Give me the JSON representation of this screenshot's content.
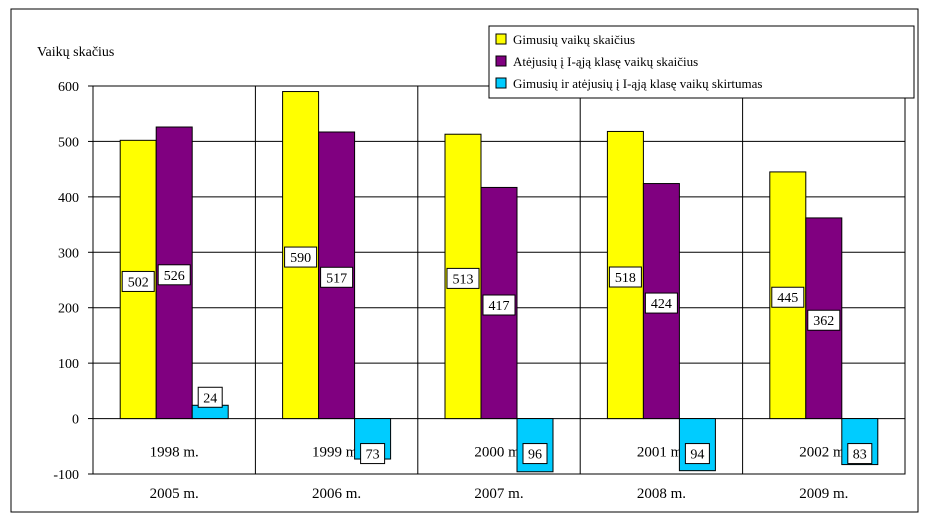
{
  "chart_data": {
    "type": "bar",
    "ylabel": "Vaikų skačius",
    "ylim": [
      -100,
      600
    ],
    "yticks": [
      -100,
      0,
      100,
      200,
      300,
      400,
      500,
      600
    ],
    "grid": true,
    "legend_position": "top-right",
    "categories_birth": [
      "1998 m.",
      "1999 m.",
      "2000 m.",
      "2001 m.",
      "2002 m."
    ],
    "categories": [
      "2005 m.",
      "2006 m.",
      "2007 m.",
      "2008 m.",
      "2009 m."
    ],
    "series": [
      {
        "name": "Gimusių vaikų skaičius",
        "color": "#ffff00",
        "values": [
          502,
          590,
          513,
          518,
          445
        ]
      },
      {
        "name": "Atėjusių į I-ąją klasę vaikų skaičius",
        "color": "#800080",
        "values": [
          526,
          517,
          417,
          424,
          362
        ]
      },
      {
        "name": "Gimusių ir atėjusių į I-ąją klasę vaikų skirtumas",
        "color": "#00ccff",
        "values": [
          24,
          -73,
          -96,
          -94,
          -83
        ]
      }
    ],
    "data_labels": [
      [
        "502",
        "590",
        "513",
        "518",
        "445"
      ],
      [
        "526",
        "517",
        "417",
        "424",
        "362"
      ],
      [
        "24",
        "-73",
        "-96",
        "-94",
        "-83"
      ]
    ]
  }
}
